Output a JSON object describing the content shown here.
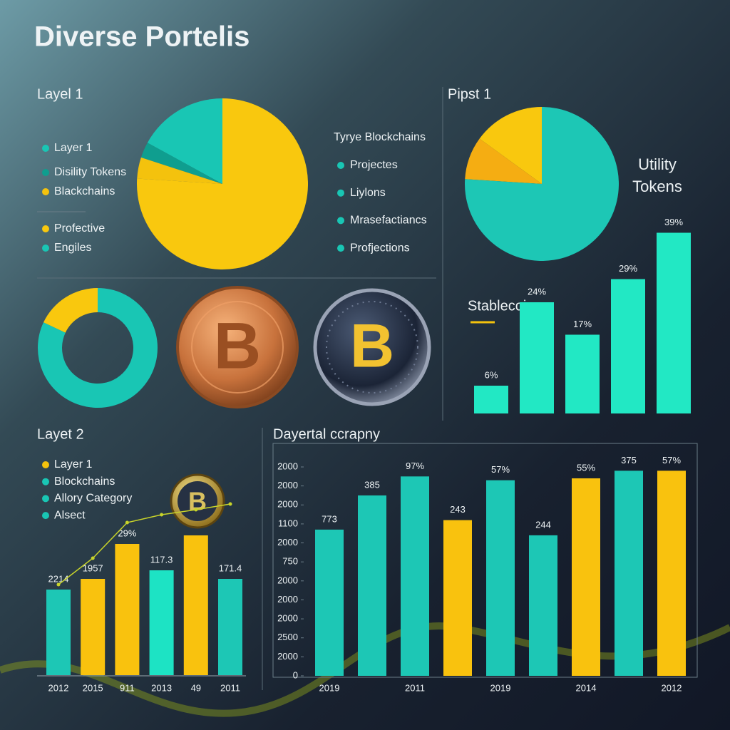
{
  "title": "Diverse Portelis",
  "coin_symbol": "B",
  "chart_data": [
    {
      "type": "pie",
      "title": "Layel 1",
      "categories": [
        "Layer 1",
        "Disility Tokens",
        "Blackchains",
        "Profective",
        "Engiles"
      ],
      "values": [
        17,
        3,
        4,
        76,
        0
      ],
      "colors": [
        "#19c6b4",
        "#0f9e8f",
        "#f4c20d",
        "#f9c80e",
        "#19c6b4"
      ],
      "legend2": {
        "title": "Tyrye Blockchains",
        "items": [
          "Projectes",
          "Liylons",
          "Mrasefactiancs",
          "Profjections"
        ],
        "color": "#19c6b4"
      }
    },
    {
      "type": "pie",
      "title": "Pipst 1",
      "annotation": "Utility Tokens",
      "values": [
        15,
        9,
        76
      ],
      "colors": [
        "#f9c80e",
        "#f5ad12",
        "#1dc7b5"
      ]
    },
    {
      "type": "bar",
      "title": "Stablecoins",
      "values": [
        6,
        24,
        17,
        29,
        39
      ],
      "value_labels": [
        "6%",
        "24%",
        "17%",
        "29%",
        "39%"
      ],
      "color": "#22e8c4",
      "ylim": [
        0,
        40
      ]
    },
    {
      "type": "donut",
      "values": [
        18,
        82
      ],
      "colors": [
        "#f9c80e",
        "#19c6b4"
      ]
    },
    {
      "type": "bar",
      "title": "Layet 2",
      "legend": [
        {
          "name": "Layer 1",
          "color": "#f4c20d"
        },
        {
          "name": "Blockchains",
          "color": "#19c6b4"
        },
        {
          "name": "Allory Category",
          "color": "#19c6b4"
        },
        {
          "name": "Alsect",
          "color": "#19c6b4"
        }
      ],
      "categories": [
        "2012",
        "2015",
        "911",
        "2013",
        "49",
        "2011"
      ],
      "values": [
        120,
        135,
        184,
        147,
        196,
        135
      ],
      "colors": [
        "#1dc7b5",
        "#f9c20e",
        "#f9c20e",
        "#1de3c4",
        "#f9c20e",
        "#1dc7b5"
      ],
      "annotations": [
        "2214",
        "1957",
        "29%",
        "117.3",
        null,
        "171.4"
      ],
      "line": {
        "color": "#c8d42a",
        "values": [
          127,
          164,
          214,
          225,
          232,
          240
        ]
      },
      "ylim": [
        0,
        250
      ]
    },
    {
      "type": "bar",
      "title": "Dayertal ccrapny",
      "categories": [
        "2019",
        null,
        "2011",
        null,
        "2019",
        null,
        "2014",
        null,
        "2012"
      ],
      "values": [
        7.7,
        9.5,
        10.5,
        8.2,
        10.3,
        7.4,
        10.4,
        10.8,
        10.8
      ],
      "colors": [
        "#1dc7b5",
        "#1dc7b5",
        "#1dc7b5",
        "#f9c20e",
        "#1dc7b5",
        "#1dc7b5",
        "#f9c20e",
        "#1dc7b5",
        "#f9c20e"
      ],
      "annotations": [
        "773",
        "385",
        "97%",
        "243",
        "57%",
        "244",
        "55%",
        "375",
        "57%"
      ],
      "ylim": [
        0,
        11
      ],
      "yticks": [
        0,
        {
          "value": 1,
          "label": "2000"
        },
        {
          "value": 2,
          "label": "2500"
        },
        {
          "value": 3,
          "label": "2000"
        },
        {
          "value": 4,
          "label": "2000"
        },
        {
          "value": 5,
          "label": "2000"
        },
        {
          "value": 6,
          "label": "750"
        },
        {
          "value": 7,
          "label": "2000"
        },
        {
          "value": 8,
          "label": "1100"
        },
        {
          "value": 9,
          "label": "2000"
        },
        {
          "value": 10,
          "label": "2000"
        },
        {
          "value": 11,
          "label": "2000"
        }
      ]
    }
  ]
}
